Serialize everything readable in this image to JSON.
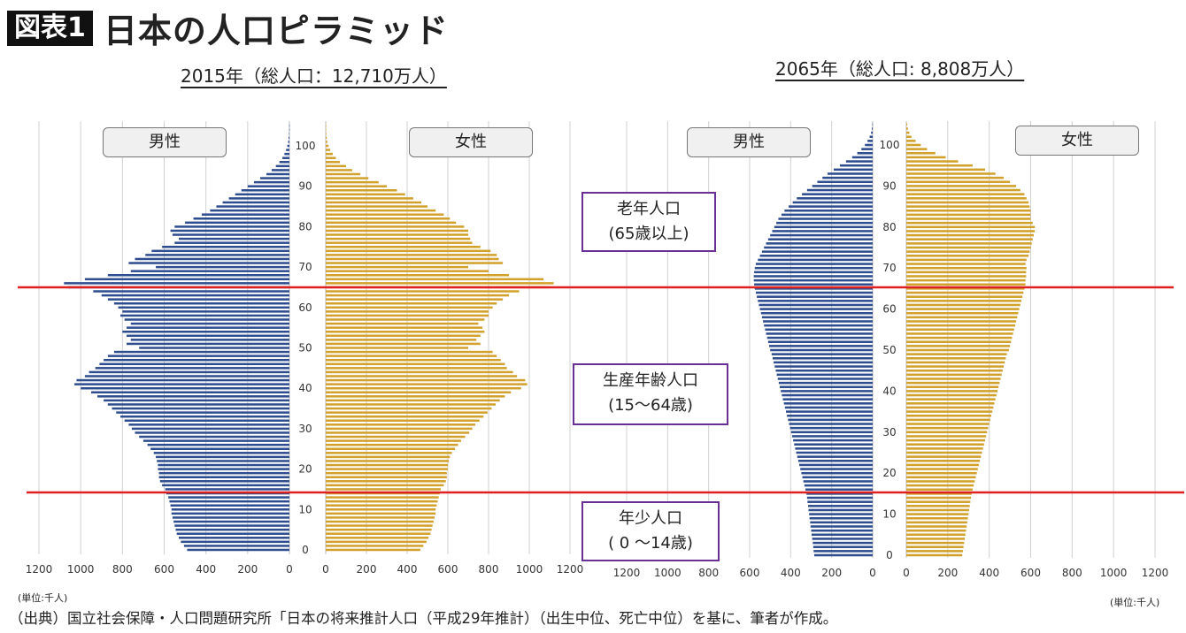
{
  "header": {
    "badge": "図表1",
    "title": "日本の人口ピラミッド"
  },
  "pyramid_titles": {
    "left": "2015年（総人口：12,710万人）",
    "right": "2065年（総人口: 8,808万人）"
  },
  "sex_labels": {
    "male": "男性",
    "female": "女性"
  },
  "annotations": {
    "elderly": {
      "line1": "老年人口",
      "line2": "(65歳以上)"
    },
    "working": {
      "line1": "生産年齢人口",
      "line2": "(15〜64歳)"
    },
    "young": {
      "line1": "年少人口",
      "line2": "( 0 〜14歳)"
    }
  },
  "unit_label": "(単位:千人)",
  "source_note": "（出典）国立社会保障・人口問題研究所「日本の将来推計人口（平成29年推計）（出生中位、死亡中位）を基に、筆者が作成。",
  "colors": {
    "male": "#2e4d8f",
    "female": "#d1a12c",
    "divider": "#e02020",
    "annotation_border": "#6a2f93",
    "grid": "#d0d0d0"
  },
  "chart_data": [
    {
      "type": "bar",
      "orientation": "horizontal-pyramid",
      "title": "2015年（総人口：12,710万人）",
      "y_axis": {
        "label": "",
        "min": 0,
        "max": 105,
        "ticks": [
          0,
          10,
          20,
          30,
          40,
          50,
          60,
          70,
          80,
          90,
          100
        ]
      },
      "x_axis": {
        "unit": "千人",
        "male_ticks": [
          1200,
          1000,
          800,
          600,
          400,
          200,
          0
        ],
        "female_ticks": [
          0,
          200,
          400,
          600,
          800,
          1000,
          1200
        ],
        "max": 1200
      },
      "age_group_dividers": [
        14.5,
        64.5
      ],
      "series": [
        {
          "name": "男性",
          "ages_from": 0,
          "values": [
            490,
            505,
            520,
            530,
            540,
            545,
            550,
            555,
            560,
            565,
            565,
            570,
            575,
            580,
            590,
            595,
            610,
            620,
            625,
            625,
            630,
            630,
            635,
            640,
            650,
            665,
            680,
            700,
            720,
            740,
            755,
            770,
            790,
            810,
            830,
            850,
            870,
            890,
            920,
            950,
            1000,
            1030,
            1020,
            980,
            960,
            930,
            910,
            890,
            870,
            840,
            720,
            780,
            760,
            780,
            800,
            780,
            760,
            790,
            810,
            800,
            820,
            840,
            870,
            900,
            940,
            1060,
            1080,
            980,
            870,
            760,
            640,
            770,
            740,
            690,
            660,
            610,
            550,
            530,
            560,
            570,
            550,
            500,
            460,
            420,
            380,
            350,
            320,
            290,
            260,
            230,
            200,
            170,
            140,
            110,
            85,
            65,
            48,
            34,
            24,
            16,
            10,
            6,
            4,
            2,
            1,
            1
          ]
        },
        {
          "name": "女性",
          "ages_from": 0,
          "values": [
            465,
            480,
            495,
            505,
            515,
            520,
            525,
            530,
            535,
            540,
            540,
            545,
            550,
            555,
            560,
            565,
            580,
            590,
            595,
            595,
            600,
            600,
            605,
            610,
            620,
            635,
            650,
            665,
            685,
            705,
            720,
            735,
            755,
            775,
            795,
            815,
            835,
            855,
            880,
            910,
            960,
            990,
            980,
            940,
            920,
            890,
            880,
            860,
            840,
            820,
            700,
            760,
            740,
            760,
            780,
            770,
            750,
            780,
            800,
            800,
            820,
            840,
            870,
            900,
            950,
            1100,
            1120,
            1070,
            900,
            800,
            700,
            870,
            850,
            840,
            810,
            760,
            720,
            710,
            700,
            700,
            680,
            640,
            610,
            580,
            540,
            500,
            470,
            430,
            390,
            350,
            300,
            260,
            210,
            170,
            130,
            100,
            70,
            50,
            35,
            22,
            14,
            8,
            5,
            3,
            2,
            1
          ]
        }
      ]
    },
    {
      "type": "bar",
      "orientation": "horizontal-pyramid",
      "title": "2065年（総人口: 8,808万人）",
      "y_axis": {
        "label": "",
        "min": 0,
        "max": 105,
        "ticks": [
          0,
          10,
          20,
          30,
          40,
          50,
          60,
          70,
          80,
          90,
          100
        ]
      },
      "x_axis": {
        "unit": "千人",
        "male_ticks": [
          1200,
          1000,
          800,
          600,
          400,
          200,
          0
        ],
        "female_ticks": [
          0,
          200,
          400,
          600,
          800,
          1000,
          1200
        ],
        "max": 1200
      },
      "age_group_dividers": [
        14.5,
        64.5
      ],
      "series": [
        {
          "name": "男性",
          "ages_from": 0,
          "values": [
            285,
            288,
            290,
            292,
            295,
            298,
            300,
            303,
            305,
            308,
            310,
            313,
            315,
            318,
            320,
            323,
            328,
            333,
            338,
            343,
            348,
            353,
            358,
            363,
            368,
            373,
            378,
            383,
            388,
            393,
            398,
            403,
            408,
            413,
            418,
            423,
            428,
            433,
            438,
            443,
            448,
            453,
            458,
            463,
            468,
            473,
            478,
            483,
            488,
            493,
            500,
            505,
            510,
            515,
            520,
            525,
            530,
            535,
            540,
            545,
            550,
            555,
            560,
            565,
            570,
            575,
            578,
            580,
            580,
            578,
            575,
            570,
            560,
            550,
            540,
            530,
            520,
            510,
            500,
            490,
            480,
            470,
            460,
            445,
            430,
            410,
            390,
            370,
            345,
            320,
            295,
            270,
            245,
            220,
            190,
            160,
            130,
            100,
            75,
            55,
            38,
            25,
            15,
            8,
            4,
            2
          ]
        },
        {
          "name": "女性",
          "ages_from": 0,
          "values": [
            270,
            273,
            276,
            279,
            282,
            285,
            288,
            291,
            294,
            297,
            300,
            303,
            306,
            309,
            312,
            315,
            320,
            325,
            330,
            335,
            340,
            345,
            350,
            355,
            360,
            365,
            370,
            375,
            380,
            385,
            390,
            395,
            400,
            405,
            410,
            415,
            420,
            425,
            430,
            435,
            440,
            445,
            450,
            455,
            460,
            465,
            470,
            475,
            480,
            485,
            495,
            500,
            505,
            510,
            515,
            520,
            525,
            530,
            535,
            540,
            545,
            550,
            555,
            560,
            565,
            570,
            575,
            575,
            578,
            578,
            580,
            575,
            580,
            590,
            595,
            600,
            605,
            610,
            615,
            620,
            620,
            610,
            600,
            600,
            600,
            595,
            590,
            580,
            570,
            550,
            530,
            500,
            470,
            430,
            380,
            320,
            250,
            190,
            140,
            100,
            70,
            45,
            25,
            15,
            8,
            4
          ]
        }
      ]
    }
  ]
}
